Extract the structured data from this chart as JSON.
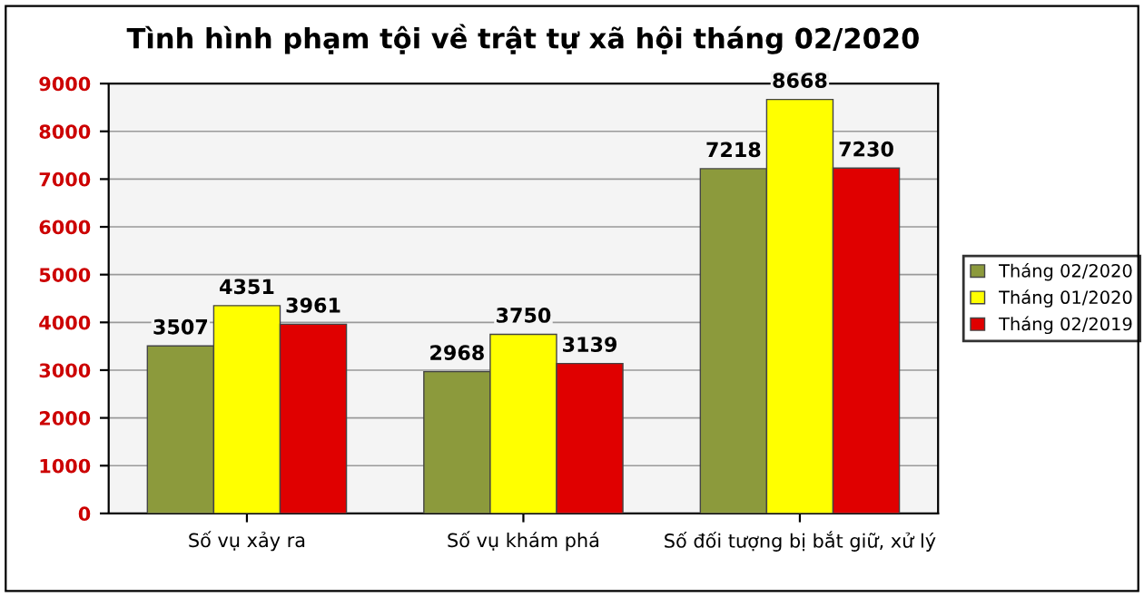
{
  "chart_data": {
    "type": "bar",
    "title": "Tình hình phạm tội về trật tự xã hội tháng 02/2020",
    "categories": [
      "Số vụ xảy ra",
      "Số vụ khám phá",
      "Số đối tượng bị bắt giữ, xử lý"
    ],
    "series": [
      {
        "name": "Tháng 02/2020",
        "color": "#8c9a3c",
        "values": [
          3507,
          2968,
          7218
        ]
      },
      {
        "name": "Tháng 01/2020",
        "color": "#ffff00",
        "values": [
          4351,
          3750,
          8668
        ]
      },
      {
        "name": "Tháng 02/2019",
        "color": "#e00000",
        "values": [
          3961,
          3139,
          7230
        ]
      }
    ],
    "ylim": [
      0,
      9000
    ],
    "yticks": [
      0,
      1000,
      2000,
      3000,
      4000,
      5000,
      6000,
      7000,
      8000,
      9000
    ],
    "grid": "y",
    "legend": "right",
    "data_labels": true
  }
}
